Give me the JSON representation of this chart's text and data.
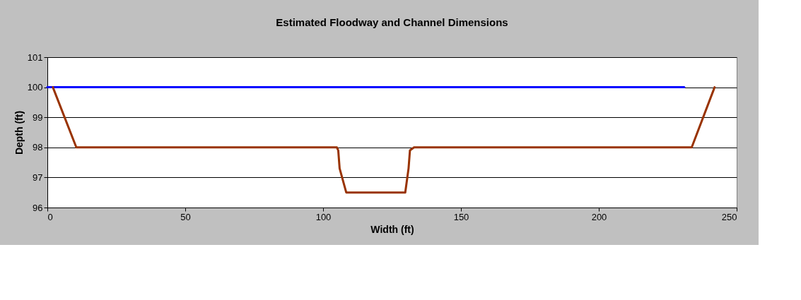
{
  "chart_data": {
    "type": "line",
    "title": "Estimated Floodway and Channel Dimensions",
    "xlabel": "Width (ft)",
    "ylabel": "Depth (ft)",
    "series": [
      {
        "color": "#0000ff",
        "x": [
          0,
          231
        ],
        "values": [
          100,
          100
        ]
      },
      {
        "color": "#993300",
        "x": [
          2,
          10.5,
          105,
          105.5,
          106,
          108.4,
          129.8,
          131,
          131.5,
          133,
          233.7,
          242
        ],
        "values": [
          100,
          98,
          98,
          97.9,
          97.3,
          96.5,
          96.5,
          97.3,
          97.9,
          98,
          98,
          100
        ]
      }
    ],
    "xlim": [
      0,
      250
    ],
    "xticks": [
      0,
      50,
      100,
      150,
      200,
      250
    ],
    "ylim": [
      96,
      101
    ],
    "yticks": [
      96,
      97,
      98,
      99,
      100,
      101
    ],
    "grid": "y",
    "legend": false
  }
}
